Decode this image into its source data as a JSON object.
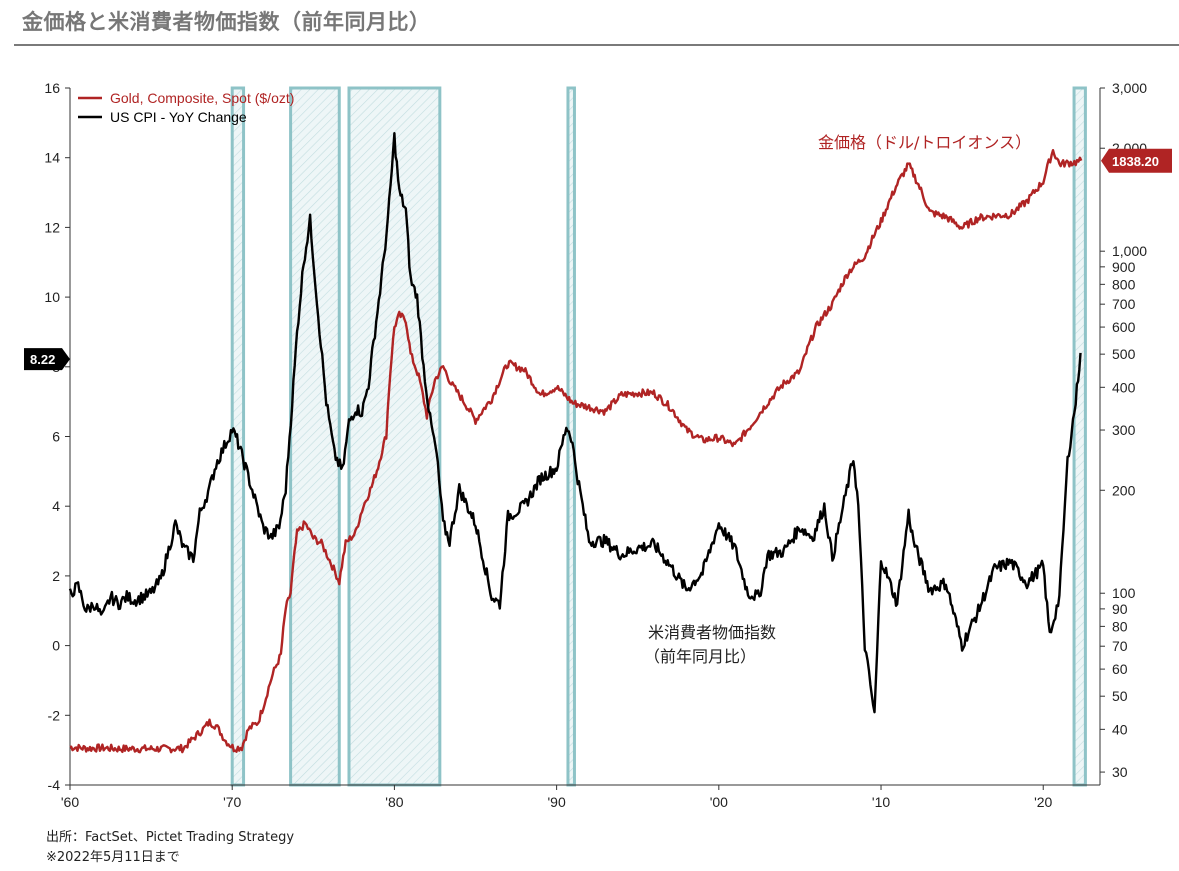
{
  "title": "金価格と米消費者物価指数（前年同月比）",
  "source_lines": [
    "出所：FactSet、Pictet Trading Strategy",
    "※2022年5月11日まで"
  ],
  "colors": {
    "gold": "#b02424",
    "cpi": "#000000",
    "recession_fill": "#d3e8ea",
    "recession_edge": "#8ec3c7"
  },
  "chart_data": {
    "type": "line",
    "legend": {
      "placement": "top-left",
      "entries": [
        "Gold, Composite, Spot ($/ozt)",
        "US CPI - YoY Change"
      ]
    },
    "x_axis": {
      "range": [
        1960,
        1964.0,
        2023
      ],
      "ticks": [
        1960,
        1970,
        1980,
        1990,
        2000,
        2010,
        2020
      ],
      "tick_labels": [
        "'60",
        "'70",
        "'80",
        "'90",
        "'00",
        "'10",
        "'20"
      ]
    },
    "y_left": {
      "range": [
        -4,
        16
      ],
      "ticks": [
        -4,
        -2,
        0,
        2,
        4,
        6,
        8,
        10,
        12,
        14,
        16
      ],
      "tick_labels": [
        "-4",
        "-2",
        "0",
        "2",
        "4",
        "6",
        "8",
        "10",
        "12",
        "14",
        "16"
      ]
    },
    "y_right": {
      "scale": "log",
      "range": [
        27.5,
        3000
      ],
      "ticks": [
        30,
        40,
        50,
        60,
        70,
        80,
        90,
        100,
        200,
        300,
        400,
        500,
        600,
        700,
        800,
        900,
        1000,
        2000,
        3000
      ],
      "tick_labels": [
        "30",
        "40",
        "50",
        "60",
        "70",
        "80",
        "90",
        "100",
        "200",
        "300",
        "400",
        "500",
        "600",
        "700",
        "800",
        "900",
        "1,000",
        "2,000",
        "3,000"
      ]
    },
    "recessions": [
      [
        1970.0,
        1970.9
      ],
      [
        1973.9,
        1975.2
      ],
      [
        1980.0,
        1980.5
      ],
      [
        1981.5,
        1982.9
      ],
      [
        1990.6,
        1991.2
      ],
      [
        2020.1,
        2020.4
      ]
    ],
    "recession_bands_drawn": [
      [
        1970.0,
        1970.7
      ],
      [
        1973.6,
        1976.6
      ],
      [
        1977.2,
        1982.8
      ],
      [
        1990.7,
        1991.1
      ],
      [
        2021.9,
        2022.6
      ]
    ],
    "series": [
      {
        "name": "Gold, Composite, Spot ($/ozt)",
        "axis": "right",
        "x": [
          1960,
          1961,
          1962,
          1963,
          1964,
          1965,
          1966,
          1967,
          1968.2,
          1968.6,
          1969,
          1969.6,
          1970.1,
          1970.6,
          1971,
          1971.6,
          1972,
          1972.5,
          1973,
          1973.3,
          1973.6,
          1974,
          1974.5,
          1975,
          1975.5,
          1976,
          1976.6,
          1977,
          1977.6,
          1978,
          1978.6,
          1979,
          1979.5,
          1980.0,
          1980.3,
          1980.7,
          1981,
          1981.5,
          1982,
          1982.5,
          1983,
          1983.5,
          1984,
          1985,
          1986,
          1987,
          1988,
          1989,
          1990,
          1991,
          1992,
          1993,
          1994,
          1995,
          1996,
          1997,
          1998,
          1999,
          2000,
          2001,
          2002,
          2003,
          2004,
          2005,
          2006,
          2007,
          2008,
          2009,
          2010,
          2011,
          2011.7,
          2012,
          2013,
          2014,
          2015,
          2016,
          2017,
          2018,
          2019,
          2020,
          2020.6,
          2021,
          2022,
          2022.35
        ],
        "values": [
          35.5,
          35.2,
          35.3,
          35.1,
          35.1,
          35.1,
          35.1,
          35.2,
          40,
          42,
          41,
          37,
          35.2,
          35.5,
          40,
          42,
          48,
          58,
          66,
          90,
          100,
          150,
          160,
          145,
          140,
          125,
          108,
          140,
          150,
          175,
          205,
          235,
          290,
          600,
          650,
          630,
          500,
          430,
          330,
          420,
          460,
          410,
          380,
          320,
          370,
          470,
          450,
          380,
          400,
          360,
          350,
          340,
          380,
          385,
          385,
          350,
          300,
          280,
          285,
          270,
          310,
          360,
          410,
          445,
          600,
          700,
          870,
          970,
          1220,
          1570,
          1790,
          1680,
          1300,
          1260,
          1170,
          1250,
          1270,
          1280,
          1400,
          1600,
          1970,
          1800,
          1820,
          1840
        ]
      },
      {
        "name": "US CPI - YoY Change",
        "axis": "left",
        "x": [
          1960,
          1960.5,
          1961,
          1961.5,
          1962,
          1962.5,
          1963,
          1963.5,
          1964,
          1965,
          1965.6,
          1966,
          1966.5,
          1967,
          1967.6,
          1968,
          1968.6,
          1969,
          1969.6,
          1970,
          1970.3,
          1970.9,
          1971.4,
          1971.9,
          1972.4,
          1972.9,
          1973.3,
          1973.7,
          1974,
          1974.4,
          1974.8,
          1975.3,
          1975.8,
          1976.3,
          1976.8,
          1977.2,
          1977.6,
          1978,
          1978.4,
          1978.8,
          1979.2,
          1979.6,
          1980.0,
          1980.3,
          1980.7,
          1981,
          1981.4,
          1981.8,
          1982.2,
          1982.6,
          1983,
          1983.4,
          1984,
          1985,
          1986,
          1986.5,
          1987,
          1988,
          1989,
          1990,
          1990.6,
          1990.9,
          1991.3,
          1992,
          1993,
          1994,
          1995,
          1996,
          1997,
          1998,
          1999,
          2000,
          2001,
          2001.8,
          2002.5,
          2003,
          2004,
          2005,
          2005.8,
          2006.5,
          2007,
          2008.3,
          2008.6,
          2009,
          2009.6,
          2010,
          2011,
          2011.7,
          2012,
          2013,
          2014,
          2015,
          2016,
          2017,
          2018,
          2019,
          2020,
          2020.4,
          2021,
          2021.5,
          2022,
          2022.3
        ],
        "values": [
          1.5,
          1.7,
          1.0,
          1.2,
          0.8,
          1.4,
          1.2,
          1.4,
          1.3,
          1.5,
          1.9,
          2.6,
          3.5,
          2.8,
          2.5,
          3.8,
          4.5,
          5.2,
          5.8,
          6.2,
          5.9,
          5.0,
          4.2,
          3.4,
          3.1,
          3.4,
          4.5,
          7.0,
          9.0,
          11.0,
          12.2,
          9.5,
          7.0,
          5.5,
          5.0,
          6.4,
          6.8,
          6.7,
          7.5,
          9.0,
          10.5,
          12.2,
          14.6,
          13.0,
          12.5,
          10.5,
          10.0,
          8.0,
          6.5,
          5.5,
          3.5,
          3.0,
          4.5,
          3.5,
          1.4,
          1.2,
          3.7,
          4.0,
          4.8,
          5.1,
          6.3,
          6.0,
          4.8,
          3.0,
          3.0,
          2.6,
          2.8,
          2.9,
          2.3,
          1.6,
          2.1,
          3.5,
          2.8,
          1.5,
          1.4,
          2.6,
          2.7,
          3.4,
          3.1,
          4.0,
          2.5,
          5.4,
          4.0,
          0.0,
          -2.0,
          2.5,
          1.2,
          3.8,
          3.0,
          1.6,
          1.8,
          0.0,
          1.0,
          2.2,
          2.4,
          1.8,
          2.3,
          0.3,
          1.4,
          5.3,
          7.0,
          8.4
        ]
      }
    ],
    "latest_labels": {
      "cpi": "8.22",
      "gold": "1838.20"
    },
    "annotations": {
      "gold": "金価格（ドル/トロイオンス）",
      "cpi_line1": "米消費者物価指数",
      "cpi_line2": "（前年同月比）"
    }
  }
}
